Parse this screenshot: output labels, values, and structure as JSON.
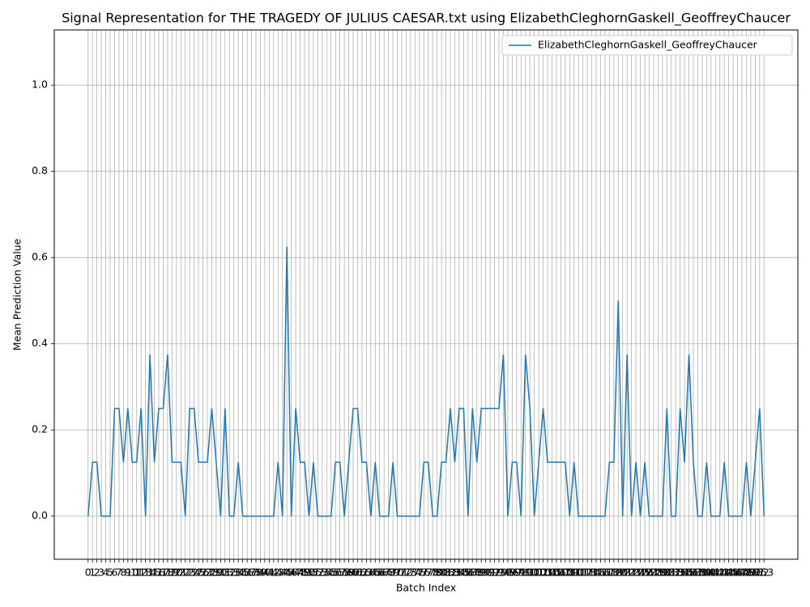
{
  "chart_data": {
    "type": "line",
    "title": "Signal Representation for THE TRAGEDY OF JULIUS CAESAR.txt using ElizabethCleghornGaskell_GeoffreyChaucer",
    "x_label": "Batch Index",
    "y_label": "Mean Prediction Value",
    "x": [
      0,
      1,
      2,
      3,
      4,
      5,
      6,
      7,
      8,
      9,
      10,
      11,
      12,
      13,
      14,
      15,
      16,
      17,
      18,
      19,
      20,
      21,
      22,
      23,
      24,
      25,
      26,
      27,
      28,
      29,
      30,
      31,
      32,
      33,
      34,
      35,
      36,
      37,
      38,
      39,
      40,
      41,
      42,
      43,
      44,
      45,
      46,
      47,
      48,
      49,
      50,
      51,
      52,
      53,
      54,
      55,
      56,
      57,
      58,
      59,
      60,
      61,
      62,
      63,
      64,
      65,
      66,
      67,
      68,
      69,
      70,
      71,
      72,
      73,
      74,
      75,
      76,
      77,
      78,
      79,
      80,
      81,
      82,
      83,
      84,
      85,
      86,
      87,
      88,
      89,
      90,
      91,
      92,
      93,
      94,
      95,
      96,
      97,
      98,
      99,
      100,
      101,
      102,
      103,
      104,
      105,
      106,
      107,
      108,
      109,
      110,
      111,
      112,
      113,
      114,
      115,
      116,
      117,
      118,
      119,
      120,
      121,
      122,
      123,
      124,
      125,
      126,
      127,
      128,
      129,
      130,
      131,
      132,
      133,
      134,
      135,
      136,
      137,
      138,
      139,
      140,
      141,
      142,
      143,
      144,
      145,
      146,
      147,
      148,
      149,
      150,
      151,
      152,
      153
    ],
    "series": [
      {
        "name": "ElizabethCleghornGaskell_GeoffreyChaucer",
        "color": "#1f77b4",
        "values": [
          0,
          0.125,
          0.125,
          0,
          0,
          0,
          0.25,
          0.25,
          0.125,
          0.25,
          0.125,
          0.125,
          0.25,
          0,
          0.375,
          0.125,
          0.25,
          0.25,
          0.375,
          0.125,
          0.125,
          0.125,
          0,
          0.25,
          0.25,
          0.125,
          0.125,
          0.125,
          0.25,
          0.125,
          0,
          0.25,
          0,
          0,
          0.125,
          0,
          0,
          0,
          0,
          0,
          0,
          0,
          0,
          0.125,
          0,
          0.625,
          0,
          0.25,
          0.125,
          0.125,
          0,
          0.125,
          0,
          0,
          0,
          0,
          0.125,
          0.125,
          0,
          0.125,
          0.25,
          0.25,
          0.125,
          0.125,
          0,
          0.125,
          0,
          0,
          0,
          0.125,
          0,
          0,
          0,
          0,
          0,
          0,
          0.125,
          0.125,
          0,
          0,
          0.125,
          0.125,
          0.25,
          0.125,
          0.25,
          0.25,
          0,
          0.25,
          0.125,
          0.25,
          0.25,
          0.25,
          0.25,
          0.25,
          0.375,
          0,
          0.125,
          0.125,
          0,
          0.375,
          0.25,
          0,
          0.125,
          0.25,
          0.125,
          0.125,
          0.125,
          0.125,
          0.125,
          0,
          0.125,
          0,
          0,
          0,
          0,
          0,
          0,
          0,
          0.125,
          0.125,
          0.5,
          0,
          0.375,
          0,
          0.125,
          0,
          0.125,
          0,
          0,
          0,
          0,
          0.25,
          0,
          0,
          0.25,
          0.125,
          0.375,
          0.125,
          0,
          0,
          0.125,
          0,
          0,
          0,
          0.125,
          0,
          0,
          0,
          0,
          0.125,
          0,
          0.125,
          0.25,
          0
        ]
      }
    ],
    "xlim": [
      -7.65,
      160.65
    ],
    "ylim": [
      -0.1,
      1.128
    ],
    "xticks": [
      0,
      1,
      2,
      3,
      4,
      5,
      6,
      7,
      8,
      9,
      10,
      11,
      12,
      13,
      14,
      15,
      16,
      17,
      18,
      19,
      20,
      21,
      22,
      23,
      24,
      25,
      26,
      27,
      28,
      29,
      30,
      31,
      32,
      33,
      34,
      35,
      36,
      37,
      38,
      39,
      40,
      41,
      42,
      43,
      44,
      45,
      46,
      47,
      48,
      49,
      50,
      51,
      52,
      53,
      54,
      55,
      56,
      57,
      58,
      59,
      60,
      61,
      62,
      63,
      64,
      65,
      66,
      67,
      68,
      69,
      70,
      71,
      72,
      73,
      74,
      75,
      76,
      77,
      78,
      79,
      80,
      81,
      82,
      83,
      84,
      85,
      86,
      87,
      88,
      89,
      90,
      91,
      92,
      93,
      94,
      95,
      96,
      97,
      98,
      99,
      100,
      101,
      102,
      103,
      104,
      105,
      106,
      107,
      108,
      109,
      110,
      111,
      112,
      113,
      114,
      115,
      116,
      117,
      118,
      119,
      120,
      121,
      122,
      123,
      124,
      125,
      126,
      127,
      128,
      129,
      130,
      131,
      132,
      133,
      134,
      135,
      136,
      137,
      138,
      139,
      140,
      141,
      142,
      143,
      144,
      145,
      146,
      147,
      148,
      149,
      150,
      151,
      152,
      153
    ],
    "yticks": [
      {
        "value": 0,
        "label": "0.0"
      },
      0.2,
      0.4,
      0.6,
      0.8,
      {
        "value": 1,
        "label": "1.0"
      }
    ],
    "grid": true,
    "legend": "upper right"
  }
}
